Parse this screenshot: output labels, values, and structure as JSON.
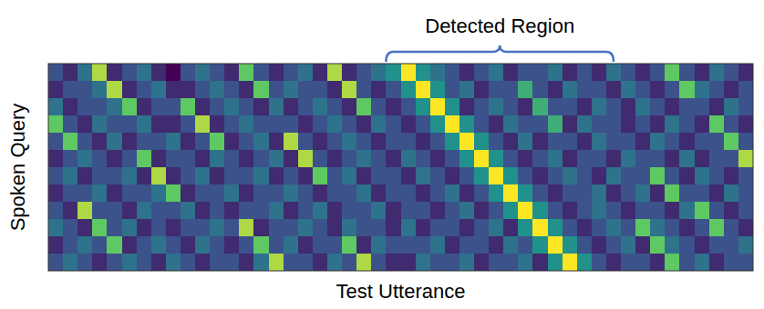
{
  "chart_data": {
    "type": "heatmap",
    "xlabel": "Test Utterance",
    "ylabel": "Spoken Query",
    "xlim": [
      0,
      48
    ],
    "ylim": [
      0,
      12
    ],
    "tick_labels": false,
    "annotations": [
      {
        "text": "Detected Region",
        "x_start": 23,
        "x_end": 38.5
      }
    ],
    "values": [
      [
        3,
        2,
        4,
        8,
        2,
        3,
        4,
        2,
        1,
        3,
        4,
        3,
        2,
        7,
        3,
        2,
        3,
        4,
        2,
        8,
        2,
        3,
        4,
        5,
        9,
        5,
        4,
        3,
        2,
        3,
        4,
        2,
        3,
        3,
        4,
        2,
        3,
        2,
        4,
        3,
        2,
        3,
        7,
        3,
        2,
        4,
        3,
        2
      ],
      [
        2,
        3,
        3,
        4,
        8,
        2,
        3,
        4,
        2,
        2,
        3,
        4,
        3,
        2,
        7,
        3,
        4,
        3,
        3,
        2,
        8,
        3,
        2,
        3,
        5,
        9,
        5,
        3,
        4,
        2,
        3,
        3,
        6,
        3,
        2,
        4,
        3,
        3,
        2,
        4,
        3,
        2,
        3,
        7,
        4,
        3,
        2,
        3
      ],
      [
        4,
        2,
        3,
        3,
        4,
        7,
        2,
        3,
        3,
        7,
        2,
        3,
        4,
        3,
        2,
        4,
        2,
        3,
        4,
        3,
        2,
        7,
        3,
        2,
        3,
        5,
        9,
        5,
        2,
        3,
        4,
        3,
        2,
        6,
        3,
        3,
        2,
        4,
        3,
        2,
        4,
        3,
        2,
        3,
        3,
        2,
        4,
        3
      ],
      [
        7,
        3,
        2,
        4,
        3,
        3,
        4,
        2,
        2,
        3,
        8,
        2,
        3,
        4,
        3,
        3,
        3,
        2,
        3,
        4,
        3,
        2,
        4,
        3,
        2,
        3,
        5,
        9,
        5,
        3,
        2,
        4,
        3,
        3,
        6,
        2,
        4,
        3,
        3,
        2,
        3,
        2,
        4,
        3,
        2,
        7,
        3,
        2
      ],
      [
        3,
        7,
        3,
        2,
        4,
        2,
        3,
        3,
        4,
        2,
        3,
        7,
        2,
        3,
        4,
        2,
        8,
        3,
        2,
        3,
        4,
        3,
        2,
        3,
        3,
        2,
        3,
        5,
        9,
        5,
        3,
        2,
        4,
        2,
        3,
        3,
        2,
        4,
        3,
        3,
        2,
        4,
        3,
        2,
        3,
        3,
        7,
        3
      ],
      [
        2,
        3,
        4,
        3,
        2,
        3,
        7,
        2,
        3,
        3,
        2,
        4,
        3,
        2,
        3,
        4,
        2,
        8,
        3,
        2,
        3,
        4,
        3,
        2,
        4,
        3,
        2,
        3,
        5,
        9,
        5,
        3,
        2,
        3,
        4,
        2,
        3,
        3,
        2,
        4,
        3,
        3,
        2,
        4,
        2,
        3,
        3,
        8
      ],
      [
        3,
        4,
        2,
        3,
        3,
        4,
        2,
        8,
        2,
        3,
        4,
        2,
        3,
        3,
        4,
        2,
        3,
        2,
        7,
        3,
        4,
        2,
        3,
        3,
        2,
        4,
        3,
        2,
        3,
        5,
        9,
        5,
        3,
        2,
        3,
        4,
        3,
        2,
        4,
        3,
        3,
        7,
        3,
        2,
        4,
        3,
        2,
        3
      ],
      [
        2,
        3,
        3,
        4,
        2,
        3,
        3,
        4,
        7,
        2,
        3,
        3,
        4,
        2,
        3,
        3,
        4,
        3,
        2,
        3,
        3,
        4,
        2,
        3,
        3,
        2,
        3,
        4,
        2,
        3,
        5,
        9,
        5,
        3,
        2,
        3,
        3,
        4,
        2,
        3,
        4,
        2,
        7,
        3,
        3,
        2,
        4,
        3
      ],
      [
        3,
        2,
        8,
        3,
        3,
        2,
        4,
        3,
        3,
        4,
        2,
        3,
        2,
        3,
        3,
        4,
        2,
        3,
        4,
        2,
        3,
        3,
        4,
        2,
        3,
        3,
        2,
        3,
        4,
        2,
        3,
        5,
        9,
        5,
        3,
        2,
        3,
        4,
        3,
        2,
        3,
        3,
        2,
        4,
        7,
        3,
        2,
        3
      ],
      [
        4,
        3,
        2,
        7,
        3,
        4,
        2,
        3,
        2,
        3,
        3,
        4,
        3,
        8,
        2,
        3,
        3,
        4,
        3,
        2,
        4,
        3,
        3,
        2,
        4,
        2,
        3,
        3,
        2,
        3,
        4,
        2,
        5,
        9,
        5,
        3,
        2,
        3,
        4,
        3,
        7,
        4,
        3,
        2,
        3,
        7,
        3,
        2
      ],
      [
        2,
        3,
        4,
        3,
        7,
        2,
        3,
        4,
        3,
        2,
        4,
        3,
        2,
        3,
        7,
        3,
        4,
        2,
        3,
        3,
        7,
        2,
        4,
        3,
        3,
        3,
        4,
        2,
        3,
        3,
        2,
        4,
        3,
        5,
        9,
        5,
        3,
        2,
        3,
        4,
        2,
        7,
        4,
        3,
        2,
        3,
        3,
        4
      ],
      [
        3,
        4,
        3,
        2,
        3,
        4,
        3,
        2,
        4,
        3,
        2,
        3,
        3,
        2,
        4,
        8,
        3,
        3,
        2,
        4,
        3,
        8,
        3,
        2,
        2,
        4,
        3,
        3,
        4,
        2,
        3,
        3,
        4,
        2,
        5,
        9,
        5,
        3,
        2,
        3,
        3,
        2,
        7,
        3,
        4,
        2,
        3,
        3
      ]
    ]
  }
}
